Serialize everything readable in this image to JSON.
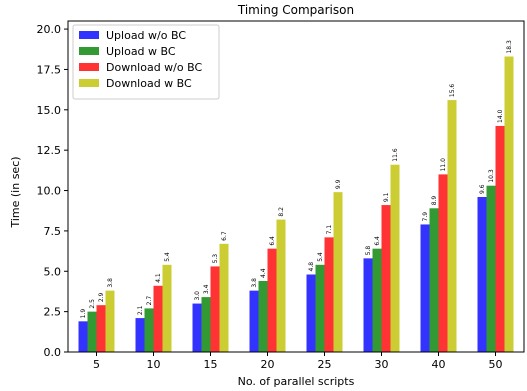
{
  "chart_data": {
    "type": "bar",
    "title": "Timing Comparison",
    "xlabel": "No. of parallel scripts",
    "ylabel": "Time (in sec)",
    "categories": [
      "5",
      "10",
      "15",
      "20",
      "25",
      "30",
      "40",
      "50"
    ],
    "ylim": [
      0,
      20.5
    ],
    "yticks": [
      "0.0",
      "2.5",
      "5.0",
      "7.5",
      "10.0",
      "12.5",
      "15.0",
      "17.5",
      "20.0"
    ],
    "legend_position": "top-left",
    "grid": false,
    "series": [
      {
        "name": "Upload w/o BC",
        "color": "#3333ff",
        "values": [
          1.9,
          2.1,
          3.0,
          3.8,
          4.8,
          5.8,
          7.9,
          9.6
        ],
        "labels": [
          "1.9",
          "2.1",
          "3.0",
          "3.8",
          "4.8",
          "5.8",
          "7.9",
          "9.6"
        ]
      },
      {
        "name": "Upload w BC",
        "color": "#339933",
        "values": [
          2.5,
          2.7,
          3.4,
          4.4,
          5.4,
          6.4,
          8.9,
          10.3
        ],
        "labels": [
          "2.5",
          "2.7",
          "3.4",
          "4.4",
          "5.4",
          "6.4",
          "8.9",
          "10.3"
        ]
      },
      {
        "name": "Download w/o BC",
        "color": "#ff3333",
        "values": [
          2.9,
          4.1,
          5.3,
          6.4,
          7.1,
          9.1,
          11.0,
          14.0
        ],
        "labels": [
          "2.9",
          "4.1",
          "5.3",
          "6.4",
          "7.1",
          "9.1",
          "11.0",
          "14.0"
        ]
      },
      {
        "name": "Download w BC",
        "color": "#cccc33",
        "values": [
          3.8,
          5.4,
          6.7,
          8.2,
          9.9,
          11.6,
          15.6,
          18.3
        ],
        "labels": [
          "3.8",
          "5.4",
          "6.7",
          "8.2",
          "9.9",
          "11.6",
          "15.6",
          "18.3"
        ]
      }
    ]
  }
}
